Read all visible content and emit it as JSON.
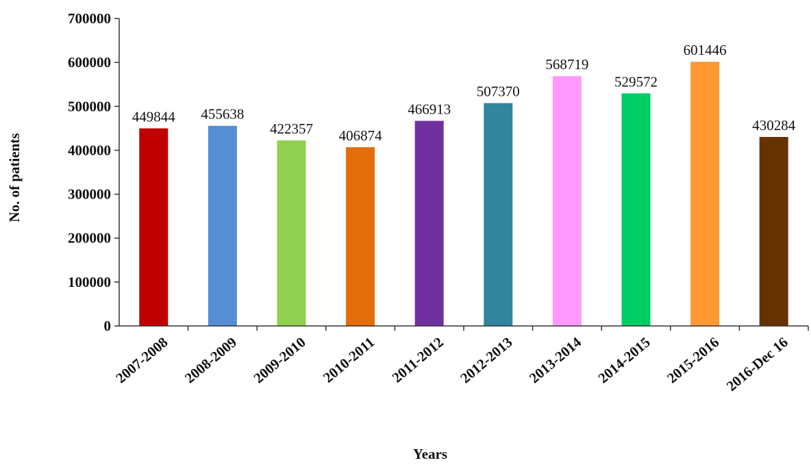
{
  "chart_data": {
    "type": "bar",
    "title": "",
    "xlabel": "Years",
    "ylabel": "No. of patients",
    "categories": [
      "2007-2008",
      "2008-2009",
      "2009-2010",
      "2010-2011",
      "2011-2012",
      "2012-2013",
      "2013-2014",
      "2014-2015",
      "2015-2016",
      "2016-Dec 16"
    ],
    "values": [
      449844,
      455638,
      422357,
      406874,
      466913,
      507370,
      568719,
      529572,
      601446,
      430284
    ],
    "colors": [
      "#c00000",
      "#558ed5",
      "#92d050",
      "#e46c0a",
      "#7030a0",
      "#31859c",
      "#ff99ff",
      "#00cc66",
      "#ff9933",
      "#663300"
    ],
    "label_colors": [
      "#111111",
      "#111111",
      "#111111",
      "#111111",
      "#111111",
      "#111111",
      "#111111",
      "#2a5a2a",
      "#111111",
      "#111111"
    ],
    "ylim": [
      0,
      700000
    ],
    "yticks": [
      0,
      100000,
      200000,
      300000,
      400000,
      500000,
      600000,
      700000
    ],
    "grid": false,
    "legend": "none"
  }
}
